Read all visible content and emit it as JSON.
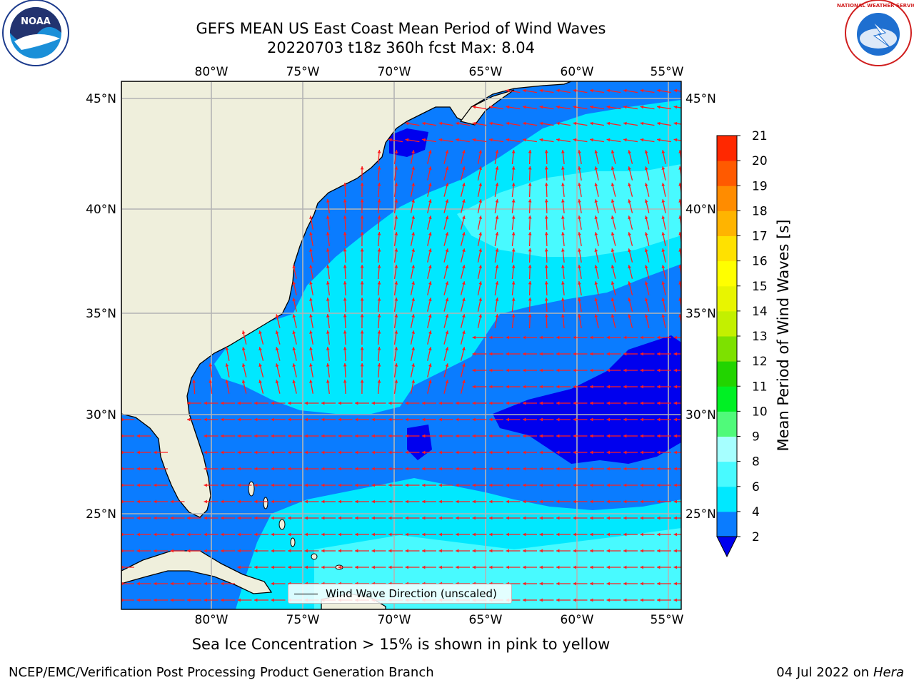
{
  "header": {
    "title_line1": "GEFS MEAN US East Coast Mean Period of Wind Waves",
    "title_line2": "20220703 t18z 360h fcst   Max: 8.04"
  },
  "logos": {
    "left": "NOAA",
    "right": "NATIONAL WEATHER SERVICE"
  },
  "map": {
    "lon_ticks": [
      "80°W",
      "75°W",
      "70°W",
      "65°W",
      "60°W",
      "55°W"
    ],
    "lat_ticks": [
      "45°N",
      "40°N",
      "35°N",
      "30°N",
      "25°N"
    ],
    "legend_label": "Wind Wave Direction (unscaled)"
  },
  "colorbar": {
    "title": "Mean Period of Wind Waves [s]",
    "ticks": [
      "2",
      "4",
      "6",
      "8",
      "9",
      "10",
      "11",
      "12",
      "13",
      "14",
      "15",
      "16",
      "17",
      "18",
      "19",
      "20",
      "21"
    ],
    "colors": [
      "#0a7cff",
      "#00e8ff",
      "#48faff",
      "#a6ffff",
      "#50fa7a",
      "#00f024",
      "#22d400",
      "#7de100",
      "#c3f000",
      "#e8f500",
      "#ffff00",
      "#ffe100",
      "#ffb400",
      "#ff8c00",
      "#ff5a00",
      "#ff2800",
      "#ff0000"
    ],
    "under_color": "#0000ee"
  },
  "footer": {
    "note": "Sea Ice Concentration > 15% is shown in pink to yellow",
    "left": "NCEP/EMC/Verification Post Processing Product Generation Branch",
    "date": "04 Jul 2022 on",
    "machine": "Hera"
  }
}
